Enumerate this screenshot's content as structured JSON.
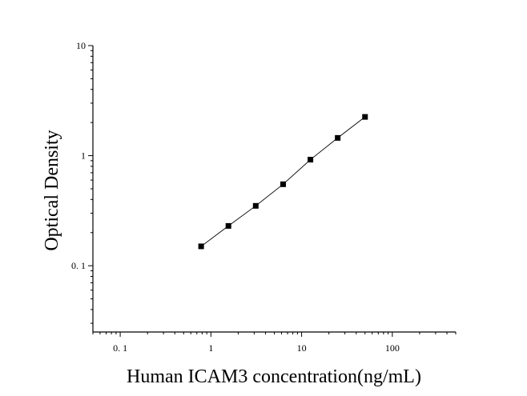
{
  "chart_data": {
    "type": "scatter",
    "title": "",
    "xlabel": "Human ICAM3 concentration(ng/mL)",
    "ylabel": "Optical Density",
    "xscale": "log",
    "yscale": "log",
    "xlim": [
      0.05,
      500
    ],
    "ylim": [
      0.025,
      10
    ],
    "x_ticks": [
      {
        "value": 0.1,
        "label": "0. 1"
      },
      {
        "value": 1,
        "label": "1"
      },
      {
        "value": 10,
        "label": "10"
      },
      {
        "value": 100,
        "label": "100"
      }
    ],
    "y_ticks": [
      {
        "value": 0.1,
        "label": "0. 1"
      },
      {
        "value": 1,
        "label": "1"
      },
      {
        "value": 10,
        "label": "10"
      }
    ],
    "grid": false,
    "legend": "none",
    "series": [
      {
        "marker": "square",
        "line": "fitted-curve",
        "color": "#000000",
        "points": [
          {
            "x": 0.78,
            "y": 0.15
          },
          {
            "x": 1.56,
            "y": 0.23
          },
          {
            "x": 3.12,
            "y": 0.35
          },
          {
            "x": 6.25,
            "y": 0.55
          },
          {
            "x": 12.5,
            "y": 0.92
          },
          {
            "x": 25,
            "y": 1.45
          },
          {
            "x": 50,
            "y": 2.25
          }
        ]
      }
    ]
  }
}
